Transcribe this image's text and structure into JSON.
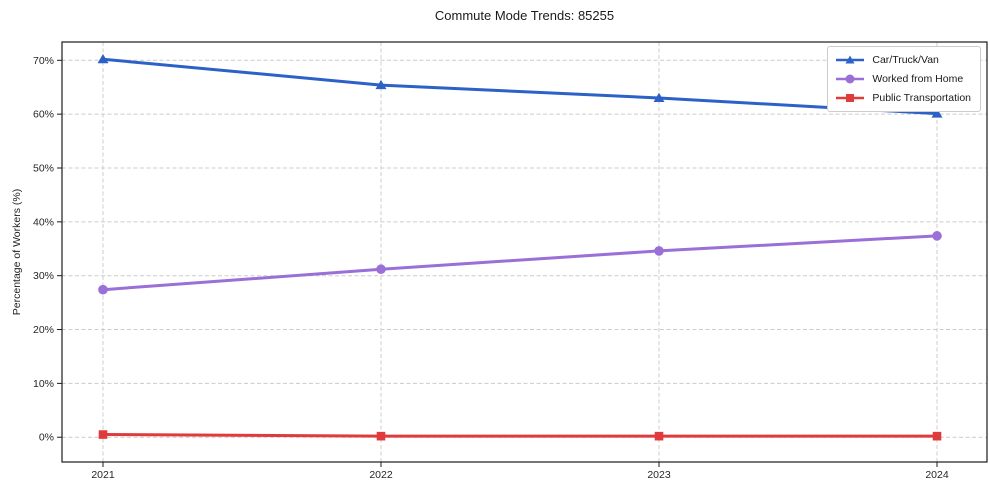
{
  "chart_data": {
    "type": "line",
    "title": "Commute Mode Trends: 85255",
    "xlabel": "",
    "ylabel": "Percentage of Workers (%)",
    "categories": [
      "2021",
      "2022",
      "2023",
      "2024"
    ],
    "series": [
      {
        "name": "Car/Truck/Van",
        "color": "#2c61c8",
        "marker": "triangle",
        "values": [
          70.2,
          65.4,
          63.0,
          60.1
        ]
      },
      {
        "name": "Worked from Home",
        "color": "#9a6fd8",
        "marker": "circle",
        "values": [
          27.4,
          31.2,
          34.6,
          37.4
        ]
      },
      {
        "name": "Public Transportation",
        "color": "#e03b3c",
        "marker": "square",
        "values": [
          0.5,
          0.2,
          0.2,
          0.2
        ]
      }
    ],
    "y_ticks": [
      {
        "label": "0%",
        "value": 0
      },
      {
        "label": "10%",
        "value": 10
      },
      {
        "label": "20%",
        "value": 20
      },
      {
        "label": "30%",
        "value": 30
      },
      {
        "label": "40%",
        "value": 40
      },
      {
        "label": "50%",
        "value": 50
      },
      {
        "label": "60%",
        "value": 60
      },
      {
        "label": "70%",
        "value": 70
      }
    ],
    "ylim": [
      -4.6,
      73.4
    ],
    "grid": true,
    "grid_style": "dashed",
    "grid_color": "#cccccc",
    "frame_color": "#1c1c1c",
    "legend_position": "upper right"
  }
}
